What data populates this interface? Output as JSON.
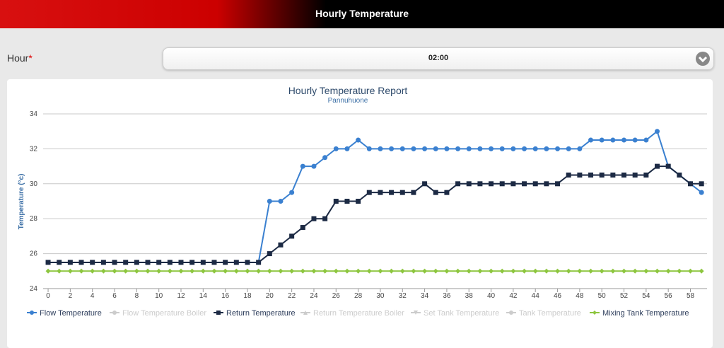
{
  "header": {
    "title": "Hourly Temperature"
  },
  "form": {
    "label": "Hour",
    "required_mark": "*",
    "value": "02:00"
  },
  "chart_data": {
    "type": "line",
    "title": "Hourly Temperature Report",
    "subtitle": "Pannuhuone",
    "y_label": "Temperature (°c)",
    "x": [
      0,
      1,
      2,
      3,
      4,
      5,
      6,
      7,
      8,
      9,
      10,
      11,
      12,
      13,
      14,
      15,
      16,
      17,
      18,
      19,
      20,
      21,
      22,
      23,
      24,
      25,
      26,
      27,
      28,
      29,
      30,
      31,
      32,
      33,
      34,
      35,
      36,
      37,
      38,
      39,
      40,
      41,
      42,
      43,
      44,
      45,
      46,
      47,
      48,
      49,
      50,
      51,
      52,
      53,
      54,
      55,
      56,
      57,
      58,
      59
    ],
    "xlim": [
      -0.45,
      59.5
    ],
    "xticks": [
      0,
      2,
      4,
      6,
      8,
      10,
      12,
      14,
      16,
      18,
      20,
      22,
      24,
      26,
      28,
      30,
      32,
      34,
      36,
      38,
      40,
      42,
      44,
      46,
      48,
      50,
      52,
      54,
      56,
      58
    ],
    "ylim": [
      24,
      34
    ],
    "yticks": [
      24,
      26,
      28,
      30,
      32,
      34
    ],
    "grid": true,
    "legend": "bottom",
    "series": [
      {
        "name": "Flow Temperature",
        "color": "#3a80d0",
        "marker": "circle",
        "visible": true,
        "values": [
          25.5,
          25.5,
          25.5,
          25.5,
          25.5,
          25.5,
          25.5,
          25.5,
          25.5,
          25.5,
          25.5,
          25.5,
          25.5,
          25.5,
          25.5,
          25.5,
          25.5,
          25.5,
          25.5,
          25.5,
          29,
          29,
          29.5,
          31,
          31,
          31.5,
          32,
          32,
          32.5,
          32,
          32,
          32,
          32,
          32,
          32,
          32,
          32,
          32,
          32,
          32,
          32,
          32,
          32,
          32,
          32,
          32,
          32,
          32,
          32,
          32.5,
          32.5,
          32.5,
          32.5,
          32.5,
          32.5,
          33,
          31,
          30.5,
          30,
          29.5
        ]
      },
      {
        "name": "Flow Temperature Boiler",
        "color": "#cccccc",
        "marker": "circle",
        "visible": false
      },
      {
        "name": "Return Temperature",
        "color": "#1c2a44",
        "marker": "square",
        "visible": true,
        "values": [
          25.5,
          25.5,
          25.5,
          25.5,
          25.5,
          25.5,
          25.5,
          25.5,
          25.5,
          25.5,
          25.5,
          25.5,
          25.5,
          25.5,
          25.5,
          25.5,
          25.5,
          25.5,
          25.5,
          25.5,
          26,
          26.5,
          27,
          27.5,
          28,
          28,
          29,
          29,
          29,
          29.5,
          29.5,
          29.5,
          29.5,
          29.5,
          30,
          29.5,
          29.5,
          30,
          30,
          30,
          30,
          30,
          30,
          30,
          30,
          30,
          30,
          30.5,
          30.5,
          30.5,
          30.5,
          30.5,
          30.5,
          30.5,
          30.5,
          31,
          31,
          30.5,
          30,
          30
        ]
      },
      {
        "name": "Return Temperature Boiler",
        "color": "#cccccc",
        "marker": "triangle",
        "visible": false
      },
      {
        "name": "Set Tank Temperature",
        "color": "#cccccc",
        "marker": "triangle-down",
        "visible": false
      },
      {
        "name": "Tank Temperature",
        "color": "#cccccc",
        "marker": "circle",
        "visible": false
      },
      {
        "name": "Mixing Tank Temperature",
        "color": "#8dc63f",
        "marker": "diamond",
        "visible": true,
        "values": [
          25,
          25,
          25,
          25,
          25,
          25,
          25,
          25,
          25,
          25,
          25,
          25,
          25,
          25,
          25,
          25,
          25,
          25,
          25,
          25,
          25,
          25,
          25,
          25,
          25,
          25,
          25,
          25,
          25,
          25,
          25,
          25,
          25,
          25,
          25,
          25,
          25,
          25,
          25,
          25,
          25,
          25,
          25,
          25,
          25,
          25,
          25,
          25,
          25,
          25,
          25,
          25,
          25,
          25,
          25,
          25,
          25,
          25,
          25,
          25
        ]
      }
    ]
  }
}
